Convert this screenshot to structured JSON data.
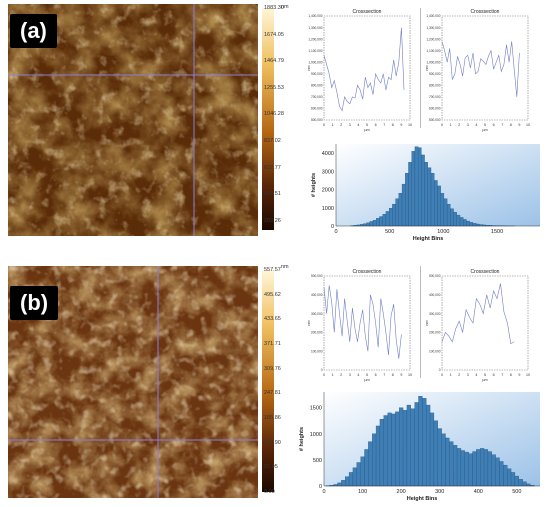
{
  "panel_a": {
    "tag": "(a)",
    "colorbar_unit": "nm",
    "colorbar_ticks": [
      "1883.30",
      "1674.05",
      "1464.79",
      "1255.53",
      "1046.28",
      "837.02",
      "627.77",
      "418.51",
      "209.26"
    ],
    "crosssection_title": "Crosssection",
    "crosssection_xlabel": "µm",
    "crosssection_ylabel": "nm"
  },
  "panel_b": {
    "tag": "(b)",
    "colorbar_unit": "nm",
    "colorbar_ticks": [
      "557.57",
      "495.62",
      "433.65",
      "371.71",
      "309.76",
      "247.81",
      "185.86",
      "123.90",
      "61.95",
      "0.00"
    ],
    "crosssection_title": "Crosssection",
    "crosssection_xlabel": "µm",
    "crosssection_ylabel": "nm"
  },
  "chart_data": [
    {
      "type": "line",
      "panel": "a",
      "title": "Crosssection",
      "xlabel": "µm",
      "ylabel": "nm",
      "xlim": [
        0,
        10
      ],
      "ylim": [
        500000,
        1400000
      ],
      "x_ticks": [
        0,
        1,
        2,
        3,
        4,
        5,
        6,
        7,
        8,
        9,
        10
      ],
      "y_ticks": [
        "1,400,000",
        "1,300,000",
        "1,200,000",
        "1,100,000",
        "1,000,000",
        "900,000",
        "800,000",
        "700,000",
        "600,000",
        "500,000"
      ],
      "x": [
        0,
        0.3,
        0.6,
        0.9,
        1.2,
        1.5,
        1.8,
        2.1,
        2.4,
        2.7,
        3.0,
        3.3,
        3.6,
        3.9,
        4.2,
        4.5,
        4.8,
        5.1,
        5.4,
        5.7,
        6.0,
        6.3,
        6.6,
        6.9,
        7.2,
        7.5,
        7.8,
        8.1,
        8.4,
        8.7,
        9.0,
        9.3
      ],
      "y": [
        1060000,
        980000,
        900000,
        780000,
        840000,
        740000,
        620000,
        580000,
        700000,
        660000,
        640000,
        700000,
        690000,
        800000,
        760000,
        680000,
        870000,
        780000,
        820000,
        720000,
        900000,
        850000,
        820000,
        900000,
        760000,
        870000,
        850000,
        1020000,
        880000,
        1000000,
        1300000,
        760000
      ]
    },
    {
      "type": "line",
      "panel": "a",
      "title": "Crosssection",
      "xlabel": "µm",
      "ylabel": "nm",
      "xlim": [
        0,
        10
      ],
      "ylim": [
        500000,
        1400000
      ],
      "x_ticks": [
        0,
        1,
        2,
        3,
        4,
        5,
        6,
        7,
        8,
        9,
        10
      ],
      "y_ticks": [
        "1,400,000",
        "1,300,000",
        "1,200,000",
        "1,100,000",
        "1,000,000",
        "900,000",
        "800,000",
        "700,000",
        "600,000",
        "500,000"
      ],
      "x": [
        0,
        0.3,
        0.6,
        0.9,
        1.2,
        1.5,
        1.8,
        2.1,
        2.4,
        2.7,
        3.0,
        3.3,
        3.6,
        3.9,
        4.2,
        4.5,
        4.8,
        5.1,
        5.4,
        5.7,
        6.0,
        6.3,
        6.6,
        6.9,
        7.2,
        7.5,
        7.8,
        8.1,
        8.4,
        8.7,
        9.0
      ],
      "y": [
        1180000,
        1100000,
        1000000,
        1120000,
        850000,
        900000,
        1050000,
        980000,
        880000,
        1040000,
        1060000,
        950000,
        1080000,
        900000,
        920000,
        1030000,
        1010000,
        980000,
        1050000,
        1100000,
        940000,
        1000000,
        1060000,
        920000,
        980000,
        1150000,
        1000000,
        1180000,
        940000,
        700000,
        1080000
      ]
    },
    {
      "type": "bar",
      "panel": "a",
      "title": "",
      "xlabel": "Height Bins",
      "ylabel": "# heights",
      "xlim": [
        0,
        1900
      ],
      "ylim": [
        0,
        4500
      ],
      "x_ticks": [
        0,
        500,
        1000,
        1500
      ],
      "y_ticks": [
        0,
        1000,
        2000,
        3000,
        4000
      ],
      "bin_width": 30,
      "x": [
        150,
        180,
        210,
        240,
        270,
        300,
        330,
        360,
        390,
        420,
        450,
        480,
        510,
        540,
        570,
        600,
        630,
        660,
        690,
        720,
        750,
        780,
        810,
        840,
        870,
        900,
        930,
        960,
        990,
        1020,
        1050,
        1080,
        1110,
        1140,
        1170,
        1200,
        1230,
        1260,
        1290,
        1320,
        1350,
        1380,
        1410,
        1440,
        1470,
        1500,
        1530,
        1560,
        1590,
        1620,
        1650
      ],
      "values": [
        20,
        40,
        60,
        90,
        130,
        180,
        250,
        320,
        420,
        520,
        650,
        800,
        980,
        1200,
        1500,
        1800,
        2300,
        2900,
        3500,
        4100,
        4350,
        4300,
        3900,
        3500,
        3200,
        2900,
        2500,
        2200,
        1800,
        1500,
        1200,
        950,
        760,
        600,
        470,
        360,
        270,
        200,
        150,
        110,
        80,
        60,
        45,
        35,
        25,
        20,
        15,
        10,
        8,
        5,
        3
      ]
    },
    {
      "type": "line",
      "panel": "b",
      "title": "Crosssection",
      "xlabel": "µm",
      "ylabel": "nm",
      "xlim": [
        0,
        10
      ],
      "ylim": [
        0,
        500000
      ],
      "x_ticks": [
        0,
        1,
        2,
        3,
        4,
        5,
        6,
        7,
        8,
        9,
        10
      ],
      "y_ticks": [
        "500,000",
        "400,000",
        "300,000",
        "200,000",
        "100,000",
        "0"
      ],
      "x": [
        0,
        0.3,
        0.6,
        0.9,
        1.2,
        1.5,
        1.8,
        2.1,
        2.4,
        2.7,
        3.0,
        3.3,
        3.6,
        3.9,
        4.2,
        4.5,
        4.8,
        5.1,
        5.4,
        5.7,
        6.0,
        6.3,
        6.6,
        6.9,
        7.2,
        7.5,
        7.8,
        8.1,
        8.4,
        8.7,
        9.0
      ],
      "y": [
        440000,
        300000,
        450000,
        360000,
        200000,
        430000,
        300000,
        180000,
        380000,
        260000,
        150000,
        330000,
        220000,
        150000,
        250000,
        320000,
        180000,
        100000,
        400000,
        350000,
        250000,
        120000,
        380000,
        300000,
        200000,
        80000,
        290000,
        350000,
        160000,
        60000,
        190000
      ]
    },
    {
      "type": "line",
      "panel": "b",
      "title": "Crosssection",
      "xlabel": "µm",
      "ylabel": "nm",
      "xlim": [
        0,
        10
      ],
      "ylim": [
        0,
        500000
      ],
      "x_ticks": [
        0,
        1,
        2,
        3,
        4,
        5,
        6,
        7,
        8,
        9,
        10
      ],
      "y_ticks": [
        "500,000",
        "400,000",
        "300,000",
        "200,000",
        "100,000",
        "0"
      ],
      "x": [
        0,
        0.4,
        0.8,
        1.2,
        1.6,
        2.0,
        2.4,
        2.8,
        3.2,
        3.6,
        4.0,
        4.4,
        4.8,
        5.2,
        5.6,
        6.0,
        6.4,
        6.8,
        7.2,
        7.6,
        8.0,
        8.4
      ],
      "y": [
        150000,
        200000,
        180000,
        150000,
        220000,
        260000,
        200000,
        320000,
        280000,
        250000,
        380000,
        350000,
        300000,
        400000,
        330000,
        420000,
        380000,
        460000,
        310000,
        250000,
        140000,
        150000
      ]
    },
    {
      "type": "bar",
      "panel": "b",
      "title": "",
      "xlabel": "Height Bins",
      "ylabel": "# heights",
      "xlim": [
        0,
        560
      ],
      "ylim": [
        0,
        1800
      ],
      "x_ticks": [
        0,
        100,
        200,
        300,
        400,
        500
      ],
      "y_ticks": [
        0,
        500,
        1000,
        1500
      ],
      "bin_width": 10,
      "x": [
        10,
        20,
        30,
        40,
        50,
        60,
        70,
        80,
        90,
        100,
        110,
        120,
        130,
        140,
        150,
        160,
        170,
        180,
        190,
        200,
        210,
        220,
        230,
        240,
        250,
        260,
        270,
        280,
        290,
        300,
        310,
        320,
        330,
        340,
        350,
        360,
        370,
        380,
        390,
        400,
        410,
        420,
        430,
        440,
        450,
        460,
        470,
        480,
        490,
        500,
        510,
        520,
        530,
        540
      ],
      "values": [
        5,
        15,
        30,
        60,
        110,
        180,
        260,
        350,
        450,
        560,
        700,
        850,
        1000,
        1150,
        1280,
        1350,
        1400,
        1380,
        1420,
        1500,
        1450,
        1550,
        1480,
        1600,
        1720,
        1680,
        1550,
        1400,
        1250,
        1100,
        1000,
        920,
        850,
        780,
        720,
        680,
        650,
        620,
        660,
        700,
        720,
        700,
        660,
        600,
        540,
        470,
        400,
        330,
        260,
        190,
        130,
        80,
        40,
        15
      ]
    }
  ]
}
